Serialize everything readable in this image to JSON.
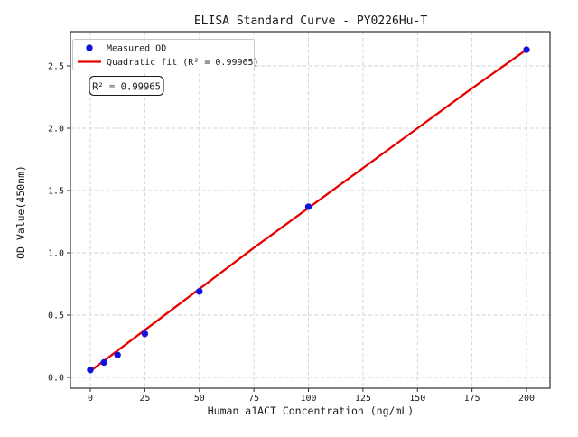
{
  "figure": {
    "background": "#ffffff",
    "spine_color": "#2e2e2e",
    "grid_color": "#d2d2d2",
    "point_color": "#1212dd",
    "line_color": "#e60000"
  },
  "chart_data": {
    "type": "scatter",
    "title": "ELISA Standard Curve - PY0226Hu-T",
    "xlabel": "Human a1ACT Concentration (ng/mL)",
    "ylabel": "OD Value(450nm)",
    "x_ticks": [
      0,
      25,
      50,
      75,
      100,
      125,
      150,
      175,
      200
    ],
    "y_ticks": [
      0.0,
      0.5,
      1.0,
      1.5,
      2.0,
      2.5
    ],
    "xlim": [
      -9.1,
      211.2
    ],
    "ylim": [
      -0.087,
      2.78
    ],
    "grid": true,
    "legend_position": "upper left",
    "series": [
      {
        "name": "Measured OD",
        "type": "scatter",
        "marker": "circle",
        "color": "#1212dd",
        "x": [
          0,
          6.25,
          12.5,
          25,
          50,
          100,
          200
        ],
        "y": [
          0.06,
          0.12,
          0.18,
          0.35,
          0.69,
          1.37,
          2.63
        ]
      },
      {
        "name": "Quadratic fit (R² = 0.99965)",
        "type": "line",
        "color": "#e60000",
        "x": [
          0,
          25,
          50,
          75,
          100,
          125,
          150,
          175,
          200
        ],
        "y": [
          0.05,
          0.38,
          0.71,
          1.04,
          1.36,
          1.68,
          2.0,
          2.32,
          2.63
        ]
      }
    ],
    "annotation": "R² = 0.99965",
    "r_squared": 0.99965
  }
}
